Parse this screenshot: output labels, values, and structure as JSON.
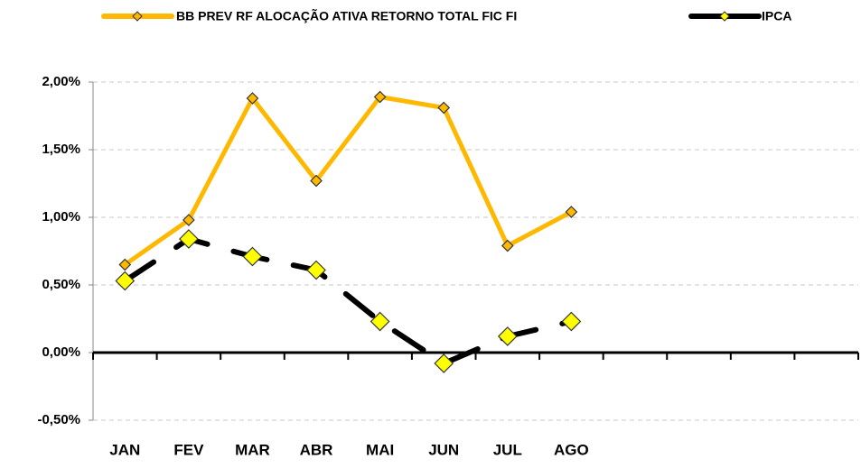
{
  "chart_data": {
    "type": "line",
    "categories": [
      "JAN",
      "FEV",
      "MAR",
      "ABR",
      "MAI",
      "JUN",
      "JUL",
      "AGO",
      null,
      null,
      null,
      null
    ],
    "series": [
      {
        "name": "BB PREV RF ALOCAÇÃO ATIVA RETORNO TOTAL FIC FI",
        "color": "#ffb800",
        "marker_color": "#ffb800",
        "dashed": false,
        "values": [
          0.65,
          0.98,
          1.88,
          1.27,
          1.89,
          1.81,
          0.79,
          1.04,
          null,
          null,
          null,
          null
        ]
      },
      {
        "name": "IPCA",
        "color": "#000000",
        "marker_color": "#ffff00",
        "dashed": true,
        "values": [
          0.53,
          0.84,
          0.71,
          0.61,
          0.23,
          -0.08,
          0.12,
          0.23,
          null,
          null,
          null,
          null
        ]
      }
    ],
    "ylim": [
      -0.5,
      2.0
    ],
    "yticks": [
      {
        "value": -0.5,
        "label": "-0,50%"
      },
      {
        "value": 0,
        "label": "0,00%"
      },
      {
        "value": 0.5,
        "label": "0,50%"
      },
      {
        "value": 1.0,
        "label": "1,00%"
      },
      {
        "value": 1.5,
        "label": "1,50%"
      },
      {
        "value": 2.0,
        "label": "2,00%"
      }
    ],
    "grid": true
  }
}
